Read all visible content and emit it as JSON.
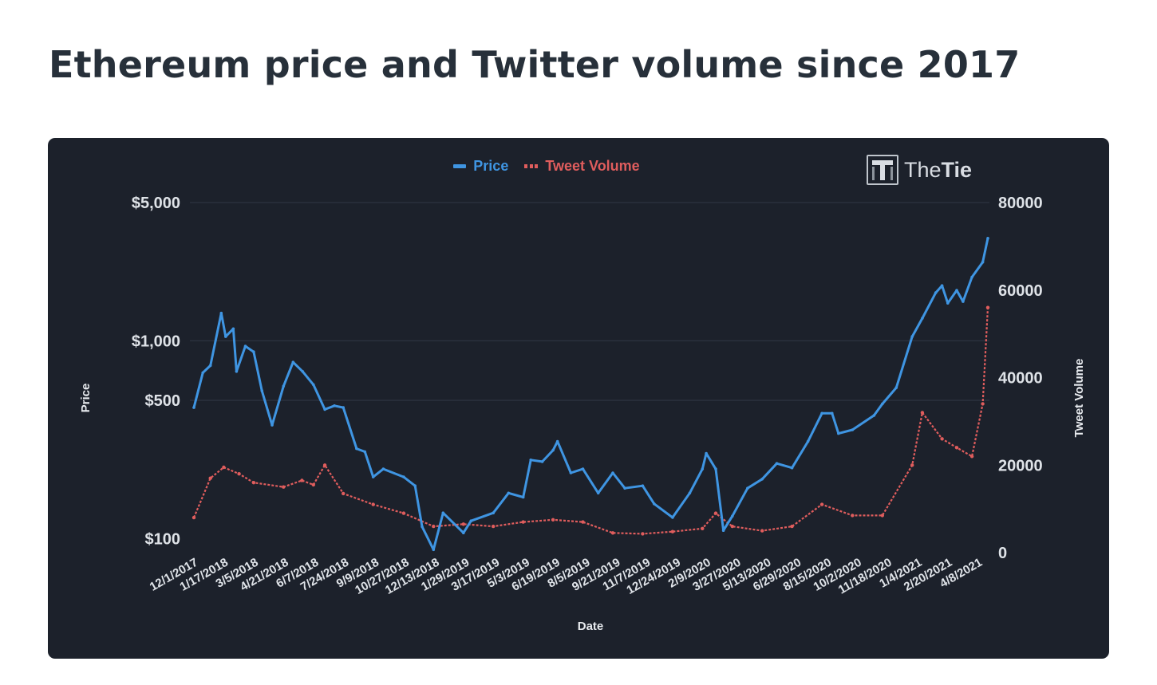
{
  "page": {
    "title": "Ethereum price and Twitter volume since 2017"
  },
  "logo": {
    "text_a": "The",
    "text_b": "Tie"
  },
  "colors": {
    "card_background": "#1c212b",
    "price": "#3f95e2",
    "tweet_volume": "#e05d5d",
    "gridline": "#2c3340",
    "text": "#dfe3e8"
  },
  "chart_data": {
    "type": "line",
    "xlabel": "Date",
    "ylabel_left": "Price",
    "ylabel_right": "Tweet Volume",
    "legend_placement": "top-center",
    "grid": true,
    "left_axis": {
      "scale": "log",
      "ylim": [
        85,
        5000
      ],
      "ticks": [
        100,
        500,
        1000,
        5000
      ],
      "tick_labels": [
        "$100",
        "$500",
        "$1,000",
        "$5,000"
      ]
    },
    "right_axis": {
      "scale": "linear",
      "ylim": [
        0,
        80000
      ],
      "ticks": [
        0,
        20000,
        40000,
        60000,
        80000
      ],
      "tick_labels": [
        "0",
        "20000",
        "40000",
        "60000",
        "80000"
      ]
    },
    "x_tick_labels": [
      "12/1/2017",
      "1/17/2018",
      "3/5/2018",
      "4/21/2018",
      "6/7/2018",
      "7/24/2018",
      "9/9/2018",
      "10/27/2018",
      "12/13/2018",
      "1/29/2019",
      "3/17/2019",
      "5/3/2019",
      "6/19/2019",
      "8/5/2019",
      "9/21/2019",
      "11/7/2019",
      "12/24/2019",
      "2/9/2020",
      "3/27/2020",
      "5/13/2020",
      "6/29/2020",
      "8/15/2020",
      "10/2/2020",
      "11/18/2020",
      "1/4/2021",
      "2/20/2021",
      "4/8/2021"
    ],
    "series": [
      {
        "name": "Price",
        "axis": "left",
        "style": "solid",
        "points": [
          [
            "12/1/2017",
            460
          ],
          [
            "12/15/2017",
            690
          ],
          [
            "12/27/2017",
            750
          ],
          [
            "1/13/2018",
            1380
          ],
          [
            "1/20/2018",
            1050
          ],
          [
            "2/1/2018",
            1150
          ],
          [
            "2/6/2018",
            700
          ],
          [
            "2/20/2018",
            940
          ],
          [
            "3/5/2018",
            880
          ],
          [
            "3/18/2018",
            560
          ],
          [
            "4/3/2018",
            375
          ],
          [
            "4/21/2018",
            590
          ],
          [
            "5/6/2018",
            780
          ],
          [
            "5/21/2018",
            700
          ],
          [
            "6/7/2018",
            600
          ],
          [
            "6/25/2018",
            450
          ],
          [
            "7/10/2018",
            470
          ],
          [
            "7/24/2018",
            460
          ],
          [
            "8/14/2018",
            285
          ],
          [
            "8/27/2018",
            275
          ],
          [
            "9/9/2018",
            205
          ],
          [
            "9/25/2018",
            225
          ],
          [
            "10/27/2018",
            205
          ],
          [
            "11/14/2018",
            185
          ],
          [
            "11/25/2018",
            115
          ],
          [
            "12/13/2018",
            88
          ],
          [
            "12/28/2018",
            135
          ],
          [
            "1/29/2019",
            107
          ],
          [
            "2/10/2019",
            123
          ],
          [
            "3/17/2019",
            135
          ],
          [
            "4/10/2019",
            170
          ],
          [
            "5/3/2019",
            162
          ],
          [
            "5/15/2019",
            250
          ],
          [
            "6/2/2019",
            245
          ],
          [
            "6/19/2019",
            280
          ],
          [
            "6/26/2019",
            310
          ],
          [
            "7/17/2019",
            215
          ],
          [
            "8/5/2019",
            225
          ],
          [
            "8/29/2019",
            170
          ],
          [
            "9/21/2019",
            215
          ],
          [
            "10/10/2019",
            180
          ],
          [
            "11/7/2019",
            185
          ],
          [
            "11/25/2019",
            150
          ],
          [
            "12/24/2019",
            128
          ],
          [
            "1/20/2020",
            170
          ],
          [
            "2/9/2020",
            225
          ],
          [
            "2/15/2020",
            270
          ],
          [
            "3/1/2020",
            225
          ],
          [
            "3/13/2020",
            110
          ],
          [
            "3/27/2020",
            130
          ],
          [
            "4/20/2020",
            180
          ],
          [
            "5/13/2020",
            200
          ],
          [
            "6/5/2020",
            240
          ],
          [
            "6/29/2020",
            228
          ],
          [
            "7/24/2020",
            310
          ],
          [
            "8/15/2020",
            430
          ],
          [
            "8/31/2020",
            430
          ],
          [
            "9/10/2020",
            340
          ],
          [
            "10/2/2020",
            355
          ],
          [
            "11/5/2020",
            420
          ],
          [
            "11/18/2020",
            480
          ],
          [
            "12/10/2020",
            580
          ],
          [
            "1/4/2021",
            1050
          ],
          [
            "1/20/2021",
            1300
          ],
          [
            "2/10/2021",
            1750
          ],
          [
            "2/20/2021",
            1900
          ],
          [
            "3/1/2021",
            1550
          ],
          [
            "3/15/2021",
            1800
          ],
          [
            "3/25/2021",
            1580
          ],
          [
            "4/8/2021",
            2100
          ],
          [
            "4/25/2021",
            2500
          ],
          [
            "5/3/2021",
            3300
          ]
        ]
      },
      {
        "name": "Tweet Volume",
        "axis": "right",
        "style": "dotted",
        "points": [
          [
            "12/1/2017",
            8000
          ],
          [
            "12/27/2017",
            17000
          ],
          [
            "1/17/2018",
            19500
          ],
          [
            "2/10/2018",
            18000
          ],
          [
            "3/5/2018",
            16000
          ],
          [
            "4/21/2018",
            15000
          ],
          [
            "5/20/2018",
            16500
          ],
          [
            "6/7/2018",
            15500
          ],
          [
            "6/25/2018",
            20000
          ],
          [
            "7/24/2018",
            13500
          ],
          [
            "9/9/2018",
            11000
          ],
          [
            "10/27/2018",
            9000
          ],
          [
            "12/13/2018",
            6000
          ],
          [
            "1/29/2019",
            6500
          ],
          [
            "3/17/2019",
            6000
          ],
          [
            "5/3/2019",
            7000
          ],
          [
            "6/19/2019",
            7500
          ],
          [
            "8/5/2019",
            7000
          ],
          [
            "9/21/2019",
            4500
          ],
          [
            "11/7/2019",
            4300
          ],
          [
            "12/24/2019",
            4800
          ],
          [
            "2/9/2020",
            5500
          ],
          [
            "3/1/2020",
            9000
          ],
          [
            "3/27/2020",
            6000
          ],
          [
            "5/13/2020",
            5000
          ],
          [
            "6/29/2020",
            6000
          ],
          [
            "8/15/2020",
            11000
          ],
          [
            "10/2/2020",
            8500
          ],
          [
            "11/18/2020",
            8500
          ],
          [
            "1/4/2021",
            20000
          ],
          [
            "1/20/2021",
            32000
          ],
          [
            "2/20/2021",
            26000
          ],
          [
            "3/15/2021",
            24000
          ],
          [
            "4/8/2021",
            22000
          ],
          [
            "4/25/2021",
            34000
          ],
          [
            "5/3/2021",
            56000
          ]
        ]
      }
    ]
  }
}
